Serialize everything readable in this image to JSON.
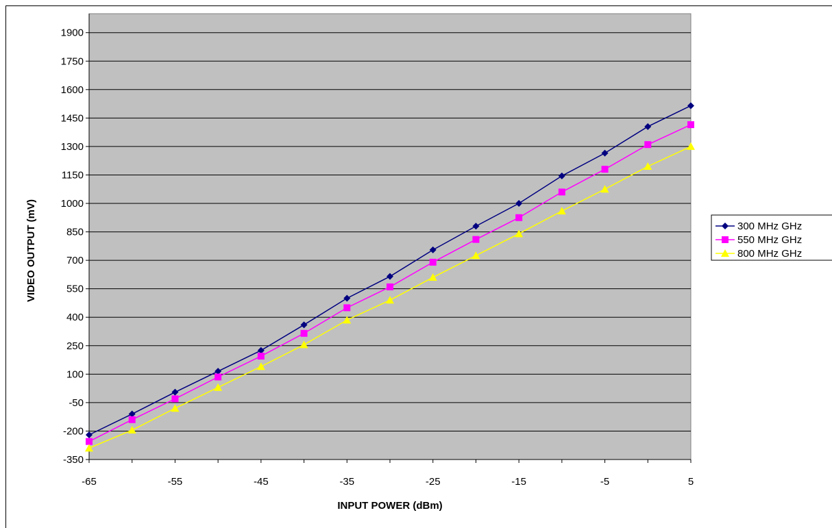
{
  "chart_data": {
    "type": "line",
    "title": "",
    "xlabel": "INPUT POWER (dBm)",
    "ylabel": "VIDEO OUTPUT (mV)",
    "xlim": [
      -65,
      5
    ],
    "ylim": [
      -350,
      2000
    ],
    "x_ticks": [
      -65,
      -55,
      -45,
      -35,
      -25,
      -15,
      -5,
      5
    ],
    "y_ticks": [
      -350,
      -200,
      -50,
      100,
      250,
      400,
      550,
      700,
      850,
      1000,
      1150,
      1300,
      1450,
      1600,
      1750,
      1900
    ],
    "x": [
      -65,
      -60,
      -55,
      -50,
      -45,
      -40,
      -35,
      -30,
      -25,
      -20,
      -15,
      -10,
      -5,
      0,
      5
    ],
    "grid": "horizontal",
    "plot_background": "#c0c0c0",
    "legend_position": "right",
    "series": [
      {
        "name": "300 MHz GHz",
        "color": "#000080",
        "marker": "diamond",
        "values": [
          -220,
          -110,
          5,
          115,
          225,
          360,
          500,
          615,
          755,
          880,
          1000,
          1145,
          1265,
          1405,
          1515
        ]
      },
      {
        "name": "550 MHz GHz",
        "color": "#ff00ff",
        "marker": "square",
        "values": [
          -255,
          -140,
          -30,
          85,
          195,
          315,
          450,
          560,
          690,
          810,
          925,
          1060,
          1180,
          1310,
          1415
        ]
      },
      {
        "name": "800 MHz GHz",
        "color": "#ffff00",
        "marker": "triangle",
        "values": [
          -290,
          -195,
          -80,
          30,
          140,
          255,
          385,
          490,
          610,
          725,
          840,
          960,
          1075,
          1195,
          1300
        ]
      }
    ]
  }
}
